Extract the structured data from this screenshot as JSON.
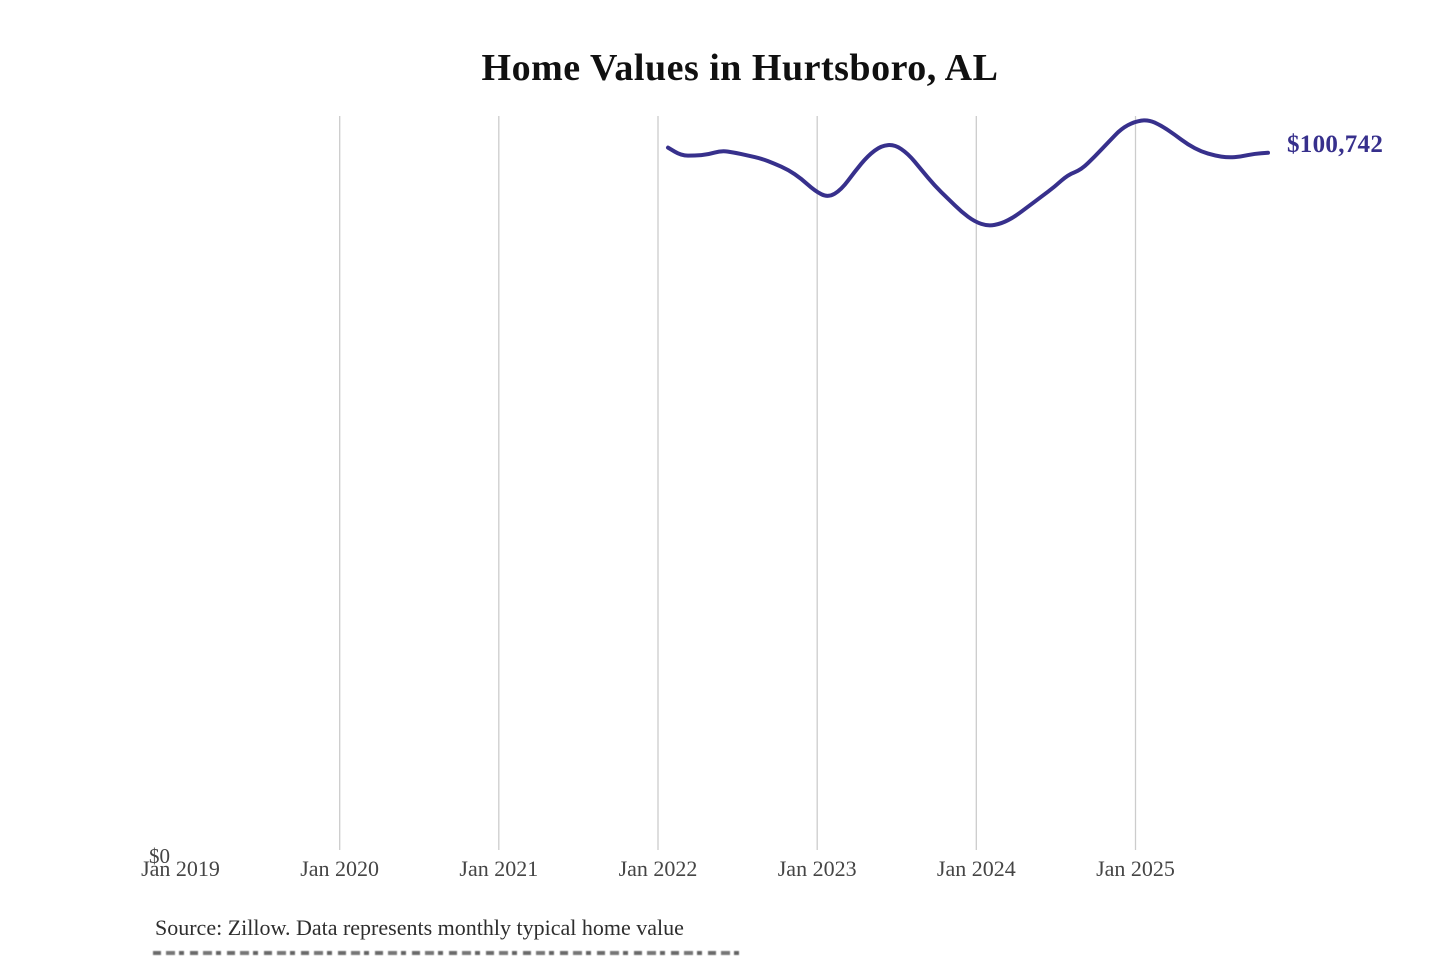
{
  "chart_data": {
    "type": "line",
    "title": "Home Values in Hurtsboro, AL",
    "xlabel": "",
    "ylabel": "",
    "ylim": [
      0,
      106000
    ],
    "grid": "vertical-gridlines-only",
    "legend": "none",
    "x_ticks": [
      "Jan 2019",
      "Jan 2020",
      "Jan 2021",
      "Jan 2022",
      "Jan 2023",
      "Jan 2024",
      "Jan 2025"
    ],
    "y_zero_label": "$0",
    "latest_value_label": "$100,742",
    "latest_value": 100742,
    "series": [
      {
        "name": "Monthly typical home value",
        "color": "#37308C",
        "x": [
          "Feb 2022",
          "Mar 2022",
          "Apr 2022",
          "May 2022",
          "Jun 2022",
          "Jul 2022",
          "Aug 2022",
          "Sep 2022",
          "Oct 2022",
          "Nov 2022",
          "Dec 2022",
          "Jan 2023",
          "Feb 2023",
          "Mar 2023",
          "Apr 2023",
          "May 2023",
          "Jun 2023",
          "Jul 2023",
          "Aug 2023",
          "Sep 2023",
          "Oct 2023",
          "Nov 2023",
          "Dec 2023",
          "Jan 2024",
          "Feb 2024",
          "Mar 2024",
          "Apr 2024",
          "May 2024",
          "Jun 2024",
          "Jul 2024",
          "Aug 2024",
          "Sep 2024",
          "Oct 2024",
          "Nov 2024",
          "Dec 2024",
          "Jan 2025",
          "Feb 2025",
          "Mar 2025",
          "Apr 2025",
          "May 2025",
          "Jun 2025",
          "Jul 2025",
          "Aug 2025",
          "Sep 2025",
          "Oct 2025",
          "Nov 2025"
        ],
        "values": [
          101461,
          100313,
          100313,
          100457,
          101031,
          100744,
          100313,
          99883,
          99165,
          98304,
          97013,
          95291,
          94286,
          95434,
          98017,
          100313,
          101748,
          101892,
          100600,
          98304,
          96008,
          94142,
          92277,
          90841,
          90196,
          90554,
          91559,
          92994,
          94429,
          95864,
          97586,
          98304,
          100170,
          102179,
          104188,
          105193,
          105480,
          104619,
          103327,
          101892,
          100887,
          100313,
          100026,
          100170,
          100600,
          100742
        ]
      }
    ]
  },
  "footer": {
    "source": "Source: Zillow. Data represents monthly typical home value"
  },
  "colors": {
    "accent": "#37308C",
    "gridline": "#cccccc",
    "axis_text": "#454545",
    "title_text": "#101010",
    "source_text": "#2e2e2e",
    "background": "#ffffff"
  }
}
